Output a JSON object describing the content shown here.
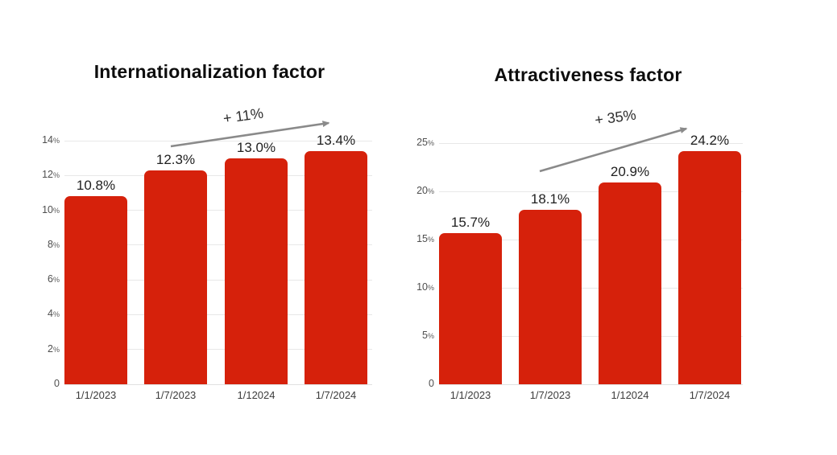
{
  "page": {
    "background_color": "#ffffff"
  },
  "chart_data": [
    {
      "type": "bar",
      "title": "Internationalization factor",
      "annotation_label": "+ 11%",
      "categories": [
        "1/1/2023",
        "1/7/2023",
        "1/12024",
        "1/7/2024"
      ],
      "values": [
        10.8,
        12.3,
        13.0,
        13.4
      ],
      "value_labels": [
        "10.8%",
        "12.3%",
        "13.0%",
        "13.4%"
      ],
      "xlabel": "",
      "ylabel": "",
      "ylim": [
        0,
        14
      ],
      "yticks": [
        0,
        2,
        4,
        6,
        8,
        10,
        12,
        14
      ],
      "ytick_suffix": "%",
      "grid": true,
      "legend_position": "none",
      "bar_color": "#d6210b",
      "arrow_color": "#8a8a8a"
    },
    {
      "type": "bar",
      "title": "Attractiveness factor",
      "annotation_label": "+ 35%",
      "categories": [
        "1/1/2023",
        "1/7/2023",
        "1/12024",
        "1/7/2024"
      ],
      "values": [
        15.7,
        18.1,
        20.9,
        24.2
      ],
      "value_labels": [
        "15.7%",
        "18.1%",
        "20.9%",
        "24.2%"
      ],
      "xlabel": "",
      "ylabel": "",
      "ylim": [
        0,
        25
      ],
      "yticks": [
        0,
        5,
        10,
        15,
        20,
        25
      ],
      "ytick_suffix": "%",
      "grid": true,
      "legend_position": "none",
      "bar_color": "#d6210b",
      "arrow_color": "#8a8a8a"
    }
  ]
}
